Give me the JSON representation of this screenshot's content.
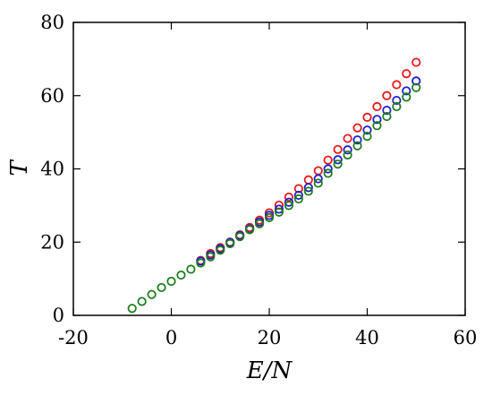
{
  "chart_data": {
    "type": "scatter",
    "title": "",
    "xlabel": "E/N",
    "ylabel": "T",
    "xlim": [
      -20,
      60
    ],
    "ylim": [
      0,
      80
    ],
    "xticks": [
      -20,
      0,
      20,
      40,
      60
    ],
    "yticks": [
      0,
      20,
      40,
      60,
      80
    ],
    "x_tick_labels": [
      "-20",
      "0",
      "20",
      "40",
      "60"
    ],
    "y_tick_labels": [
      "0",
      "20",
      "40",
      "60",
      "80"
    ],
    "grid": false,
    "legend": "none",
    "series": [
      {
        "color": "#e41a1c",
        "marker": "open-circle",
        "x": [
          6,
          8,
          10,
          12,
          14,
          16,
          18,
          20,
          22,
          24,
          26,
          28,
          30,
          32,
          34,
          36,
          38,
          40,
          42,
          44,
          46,
          48,
          50
        ],
        "y": [
          15.0,
          16.9,
          18.5,
          20.0,
          22.0,
          24.0,
          26.0,
          28.0,
          30.1,
          32.3,
          34.6,
          37.0,
          39.5,
          42.4,
          45.3,
          48.3,
          51.2,
          54.1,
          57.0,
          60.0,
          63.0,
          66.0,
          69.1
        ]
      },
      {
        "color": "#1f1fcc",
        "marker": "open-circle",
        "x": [
          6,
          8,
          10,
          12,
          14,
          16,
          18,
          20,
          22,
          24,
          26,
          28,
          30,
          32,
          34,
          36,
          38,
          40,
          42,
          44,
          46,
          48,
          50
        ],
        "y": [
          14.8,
          16.5,
          18.2,
          19.9,
          21.8,
          23.6,
          25.5,
          27.3,
          29.0,
          30.9,
          32.8,
          34.9,
          37.3,
          40.0,
          42.5,
          45.2,
          47.9,
          50.6,
          53.5,
          56.0,
          58.7,
          61.3,
          64.0
        ]
      },
      {
        "color": "#1e7d1e",
        "marker": "open-circle",
        "x": [
          -8,
          -6,
          -4,
          -2,
          0,
          2,
          4,
          6,
          8,
          10,
          12,
          14,
          16,
          18,
          20,
          22,
          24,
          26,
          28,
          30,
          32,
          34,
          36,
          38,
          40,
          42,
          44,
          46,
          48,
          50
        ],
        "y": [
          1.9,
          3.8,
          5.7,
          7.6,
          9.3,
          11.0,
          12.6,
          14.3,
          16.0,
          17.8,
          19.6,
          21.5,
          23.4,
          25.0,
          26.7,
          28.2,
          30.0,
          31.8,
          33.9,
          36.1,
          38.8,
          41.3,
          43.8,
          46.3,
          48.9,
          51.8,
          54.3,
          57.0,
          59.6,
          62.2
        ]
      }
    ]
  }
}
